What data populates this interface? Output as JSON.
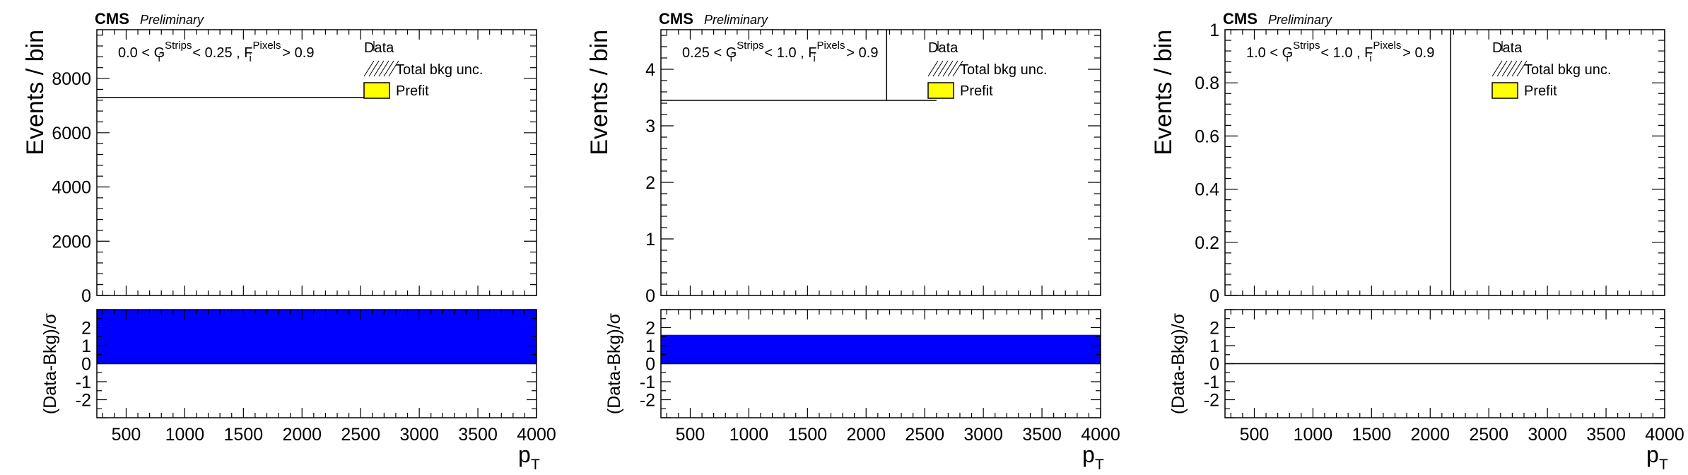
{
  "colors": {
    "prefit_fill": "#ffff00",
    "pull_fill": "#0000ff",
    "axis": "#000000",
    "line": "#000000"
  },
  "chart_data": [
    {
      "type": "bar",
      "experiment": "CMS",
      "status": "Preliminary",
      "cut": {
        "low": "0.0",
        "high": "0.25",
        "G": "G",
        "G_sub": "i",
        "G_sup": "Strips",
        "F": "F",
        "F_sub": "i",
        "F_sup": "Pixels",
        "F_cut": "> 0.9"
      },
      "legend": [
        "Data",
        "Total bkg unc.",
        "Prefit"
      ],
      "legend_placement": "top-right",
      "ylabel": "Events / bin",
      "xlabel": "p",
      "xlabel_sub": "T",
      "ratio_ylabel": "(Data-Bkg)/σ",
      "xlim": [
        250,
        4000
      ],
      "ylim": [
        0,
        9800
      ],
      "y_ticks": [
        0,
        2000,
        4000,
        6000,
        8000
      ],
      "x_ticks": [
        500,
        1000,
        1500,
        2000,
        2500,
        3000,
        3500,
        4000
      ],
      "ratio_ylim": [
        -3,
        3
      ],
      "ratio_ticks": [
        -2,
        -1,
        0,
        1,
        2
      ],
      "hist_segments": [
        [
          250,
          2600,
          7300
        ]
      ],
      "data_vlines": [],
      "pull_bars": [
        [
          250,
          4000,
          3
        ]
      ]
    },
    {
      "type": "bar",
      "experiment": "CMS",
      "status": "Preliminary",
      "cut": {
        "low": "0.25",
        "high": "1.0",
        "G": "G",
        "G_sub": "i",
        "G_sup": "Strips",
        "F": "F",
        "F_sub": "i",
        "F_sup": "Pixels",
        "F_cut": "> 0.9"
      },
      "legend": [
        "Data",
        "Total bkg unc.",
        "Prefit"
      ],
      "legend_placement": "top-right",
      "ylabel": "Events / bin",
      "xlabel": "p",
      "xlabel_sub": "T",
      "ratio_ylabel": "(Data-Bkg)/σ",
      "xlim": [
        250,
        4000
      ],
      "ylim": [
        0,
        4.7
      ],
      "y_ticks": [
        0,
        1,
        2,
        3,
        4
      ],
      "x_ticks": [
        500,
        1000,
        1500,
        2000,
        2500,
        3000,
        3500,
        4000
      ],
      "ratio_ylim": [
        -3,
        3
      ],
      "ratio_ticks": [
        -2,
        -1,
        0,
        1,
        2
      ],
      "hist_segments": [
        [
          250,
          2600,
          3.45
        ]
      ],
      "data_vlines": [
        [
          2175,
          3.45,
          4.7
        ]
      ],
      "pull_bars": [
        [
          250,
          4000,
          1.6
        ]
      ]
    },
    {
      "type": "bar",
      "experiment": "CMS",
      "status": "Preliminary",
      "cut": {
        "low": "1.0",
        "high": "1.0",
        "G": "G",
        "G_sub": "i",
        "G_sup": "Strips",
        "F": "F",
        "F_sub": "i",
        "F_sup": "Pixels",
        "F_cut": "> 0.9"
      },
      "legend": [
        "Data",
        "Total bkg unc.",
        "Prefit"
      ],
      "legend_placement": "top-right",
      "ylabel": "Events / bin",
      "xlabel": "p",
      "xlabel_sub": "T",
      "ratio_ylabel": "(Data-Bkg)/σ",
      "xlim": [
        250,
        4000
      ],
      "ylim": [
        0,
        1
      ],
      "y_ticks": [
        0,
        0.2,
        0.4,
        0.6,
        0.8,
        1
      ],
      "x_ticks": [
        500,
        1000,
        1500,
        2000,
        2500,
        3000,
        3500,
        4000
      ],
      "ratio_ylim": [
        -3,
        3
      ],
      "ratio_ticks": [
        -2,
        -1,
        0,
        1,
        2
      ],
      "hist_segments": [],
      "data_vlines": [
        [
          2175,
          0,
          1
        ]
      ],
      "pull_bars": [
        [
          250,
          4000,
          0
        ]
      ]
    }
  ]
}
